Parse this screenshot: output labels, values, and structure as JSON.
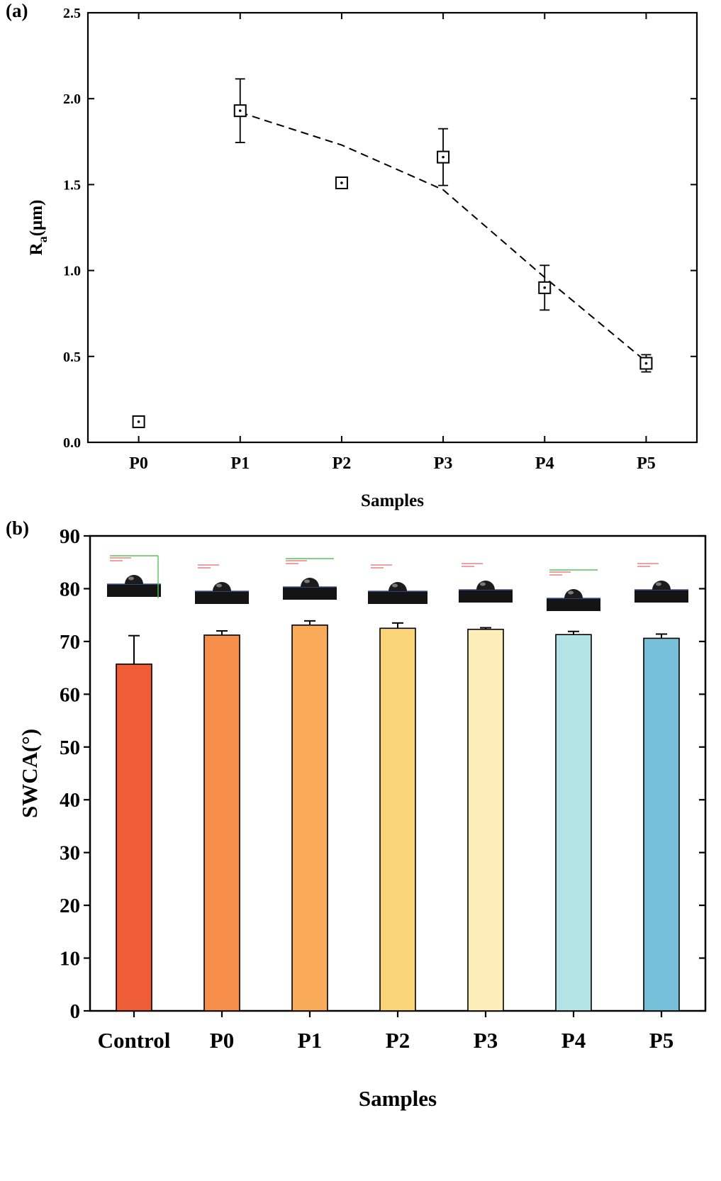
{
  "chart_data": [
    {
      "panel_label": "(a)",
      "type": "scatter",
      "categories": [
        "P0",
        "P1",
        "P2",
        "P3",
        "P4",
        "P5"
      ],
      "values": [
        0.12,
        1.93,
        1.51,
        1.66,
        0.9,
        0.46
      ],
      "errors": [
        0,
        0.185,
        0.015,
        0.165,
        0.13,
        0.05
      ],
      "trend_line": {
        "style": "dashed",
        "x": [
          "P1",
          "P2",
          "P3",
          "P4",
          "P5"
        ],
        "values": [
          1.92,
          1.73,
          1.47,
          0.96,
          0.47
        ]
      },
      "xlabel": "Samples",
      "ylabel_main": "R",
      "ylabel_sub": "a",
      "ylabel_unit": "(μm)",
      "ylim": [
        0,
        2.5
      ],
      "yticks": [
        "0.0",
        "0.5",
        "1.0",
        "1.5",
        "2.0",
        "2.5"
      ],
      "marker": "open-square",
      "grid": false
    },
    {
      "panel_label": "(b)",
      "type": "bar",
      "categories": [
        "Control",
        "P0",
        "P1",
        "P2",
        "P3",
        "P4",
        "P5"
      ],
      "values": [
        65.7,
        71.2,
        73.1,
        72.5,
        72.3,
        71.3,
        70.6
      ],
      "errors": [
        5.4,
        0.8,
        0.8,
        1.0,
        0.3,
        0.6,
        0.8
      ],
      "colors": [
        "#ee5d35",
        "#f78f4b",
        "#faab5a",
        "#fad577",
        "#fdeeb9",
        "#b4e3e6",
        "#76c0da"
      ],
      "inset_images": [
        "droplet-image",
        "droplet-image",
        "droplet-image",
        "droplet-image",
        "droplet-image",
        "droplet-image",
        "droplet-image"
      ],
      "xlabel": "Samples",
      "ylabel": "SWCA(°)",
      "ylim": [
        0,
        90
      ],
      "yticks": [
        "0",
        "10",
        "20",
        "30",
        "40",
        "50",
        "60",
        "70",
        "80",
        "90"
      ],
      "grid": false
    }
  ]
}
